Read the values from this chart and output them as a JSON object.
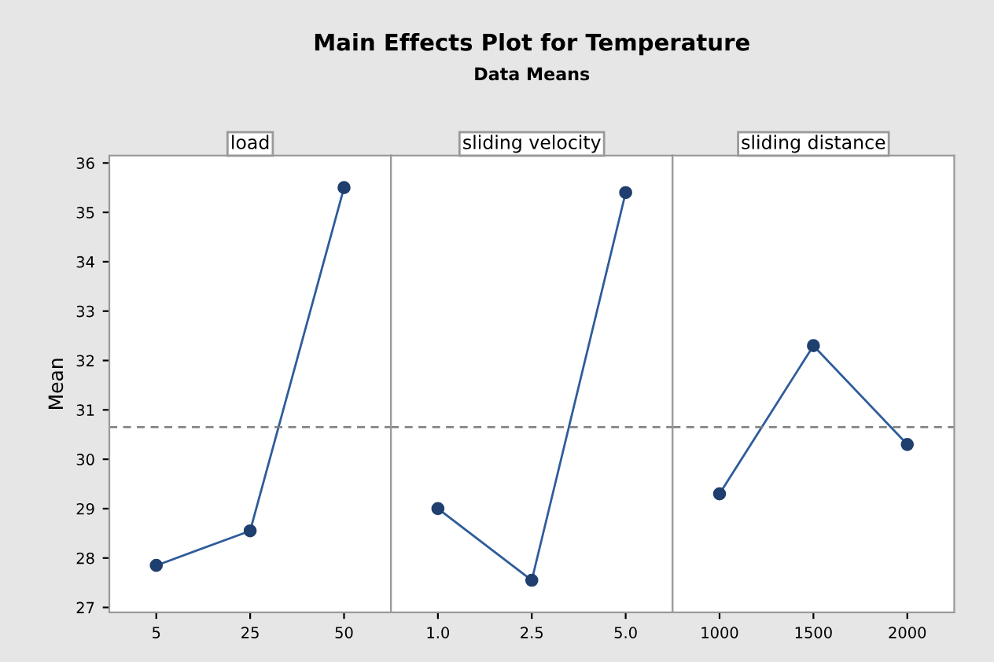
{
  "chart_data": [
    {
      "type": "line",
      "xlabel": "load",
      "ylabel": "Mean",
      "categories": [
        "5",
        "25",
        "50"
      ],
      "series": [
        {
          "color": "#2f5c9a",
          "values": [
            27.85,
            28.55,
            35.5
          ]
        }
      ],
      "ylim": [
        26.9,
        36.15
      ],
      "yticks": [
        27,
        28,
        29,
        30,
        31,
        32,
        33,
        34,
        35,
        36
      ],
      "marker": "circle",
      "grid": false,
      "legend": false,
      "ref_lines": [
        {
          "axis": "y",
          "value": 30.65,
          "color": "#7f7f7f",
          "line_style": "dashed"
        }
      ]
    },
    {
      "type": "line",
      "title": "Main Effects Plot for Temperature",
      "subtitle": "Data Means",
      "xlabel": "sliding velocity",
      "categories": [
        "1.0",
        "2.5",
        "5.0"
      ],
      "series": [
        {
          "color": "#2f5c9a",
          "values": [
            29.0,
            27.55,
            35.4
          ]
        }
      ],
      "ylim": [
        26.9,
        36.15
      ],
      "tick_labels": "x",
      "marker": "circle",
      "grid": false,
      "legend": false,
      "ref_lines": [
        {
          "axis": "y",
          "value": 30.65,
          "color": "#7f7f7f",
          "line_style": "dashed"
        }
      ]
    },
    {
      "type": "line",
      "xlabel": "sliding distance",
      "categories": [
        "1000",
        "1500",
        "2000"
      ],
      "series": [
        {
          "color": "#2f5c9a",
          "values": [
            29.3,
            32.3,
            30.3
          ]
        }
      ],
      "ylim": [
        26.9,
        36.15
      ],
      "tick_labels": "x",
      "marker": "circle",
      "grid": false,
      "legend": false,
      "ref_lines": [
        {
          "axis": "y",
          "value": 30.65,
          "color": "#7f7f7f",
          "line_style": "dashed"
        }
      ]
    }
  ]
}
